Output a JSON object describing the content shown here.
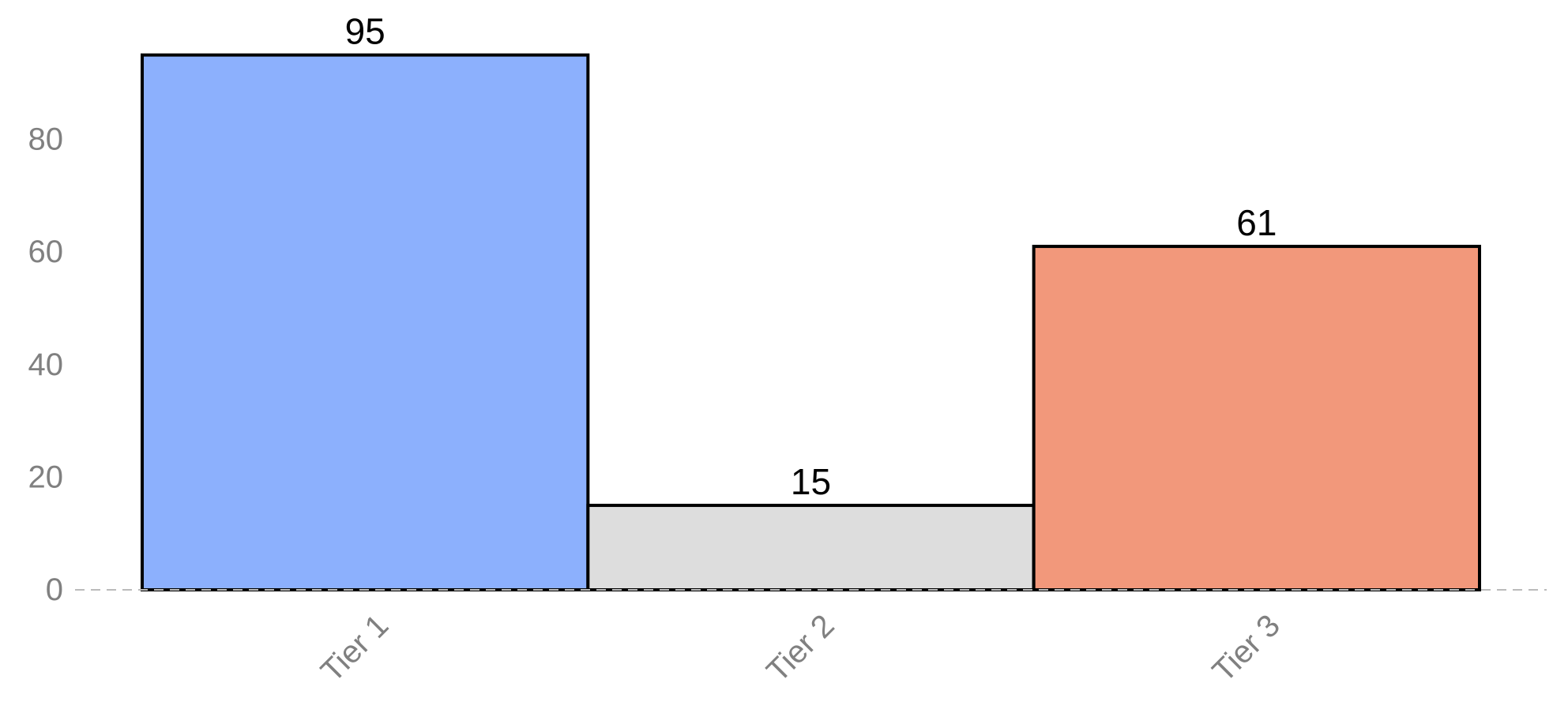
{
  "chart_data": {
    "type": "bar",
    "categories": [
      "Tier 1",
      "Tier 2",
      "Tier 3"
    ],
    "values": [
      95,
      15,
      61
    ],
    "colors": [
      "#8cb0fd",
      "#dddddd",
      "#f2987b"
    ],
    "title": "",
    "xlabel": "",
    "ylabel": "",
    "ylim": [
      0,
      100
    ],
    "yticks": [
      0,
      20,
      40,
      60,
      80
    ],
    "ytick_labels": [
      "0",
      "20",
      "40",
      "60",
      "80"
    ],
    "data_labels": [
      "95",
      "15",
      "61"
    ],
    "grid": false,
    "legend": "none"
  }
}
